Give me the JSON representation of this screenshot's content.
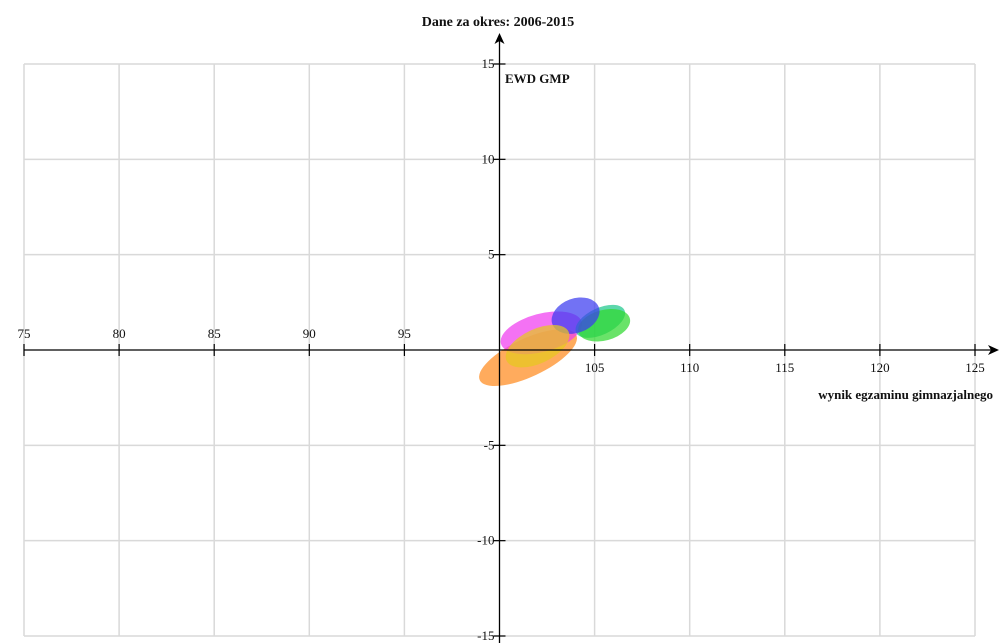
{
  "chart_data": {
    "type": "scatter",
    "title": "Dane za okres: 2006-2015",
    "xlabel": "wynik egzaminu gimnazjalnego",
    "ylabel": "EWD GMP",
    "xlim": [
      75,
      125
    ],
    "ylim": [
      -15,
      15
    ],
    "x_ticks": [
      75,
      80,
      85,
      90,
      95,
      105,
      110,
      115,
      120,
      125
    ],
    "y_ticks": [
      15,
      10,
      5,
      -5,
      -10,
      -15
    ],
    "grid": true,
    "series": [
      {
        "color": "#ff8a1e",
        "cx": 101.5,
        "cy": -0.4,
        "rx": 2.8,
        "ry": 1.0,
        "angle": 25
      },
      {
        "color": "#f03cf0",
        "cx": 102.2,
        "cy": 0.9,
        "rx": 2.2,
        "ry": 1.0,
        "angle": 15
      },
      {
        "color": "#1ec88c",
        "cx": 105.3,
        "cy": 1.5,
        "rx": 1.4,
        "ry": 0.7,
        "angle": 25
      },
      {
        "color": "#2fd82f",
        "cx": 105.5,
        "cy": 1.3,
        "rx": 1.4,
        "ry": 0.8,
        "angle": 15
      },
      {
        "color": "#3c3cf0",
        "cx": 104.0,
        "cy": 1.8,
        "rx": 1.3,
        "ry": 0.9,
        "angle": 20
      },
      {
        "color": "#e6c81e",
        "cx": 102.0,
        "cy": 0.2,
        "rx": 1.8,
        "ry": 0.9,
        "angle": 25
      }
    ]
  }
}
